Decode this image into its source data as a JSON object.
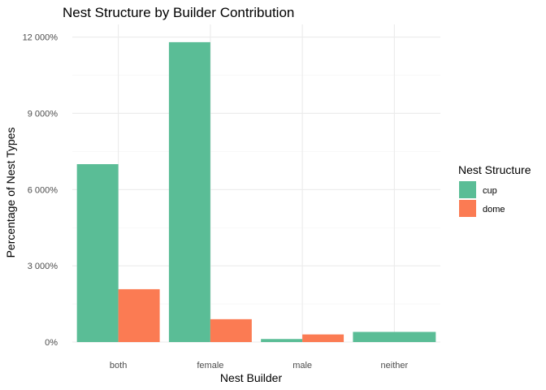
{
  "chart_data": {
    "type": "bar",
    "title": "Nest Structure by Builder Contribution",
    "xlabel": "Nest Builder",
    "ylabel": "Percentage of Nest Types",
    "categories": [
      "both",
      "female",
      "male",
      "neither"
    ],
    "series": [
      {
        "name": "cup",
        "color": "#5abd96",
        "values": [
          7000,
          11800,
          120,
          400
        ]
      },
      {
        "name": "dome",
        "color": "#fb7b53",
        "values": [
          2080,
          900,
          300,
          null
        ]
      }
    ],
    "ylim": [
      0,
      12500
    ],
    "yticks": [
      0,
      3000,
      6000,
      9000,
      12000
    ],
    "ytick_labels": [
      "0%",
      "3 000%",
      "6 000%",
      "9 000%",
      "12 000%"
    ],
    "grid": true,
    "legend": {
      "title": "Nest Structure",
      "position": "right",
      "items": [
        "cup",
        "dome"
      ]
    }
  }
}
